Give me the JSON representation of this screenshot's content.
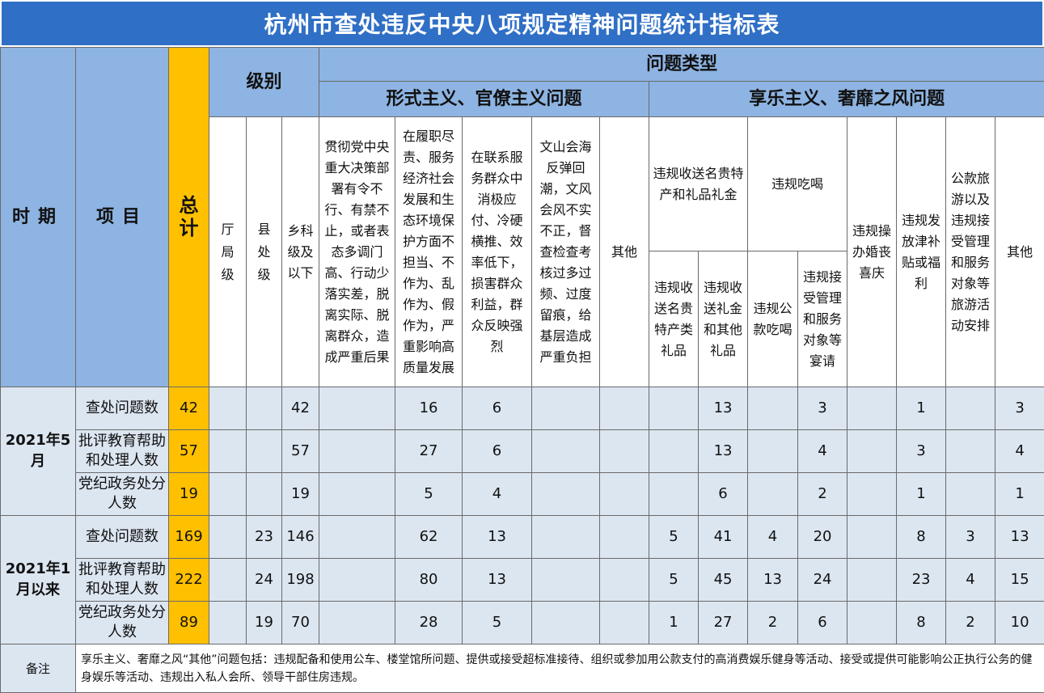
{
  "title": "杭州市查处违反中央八项规定精神问题统计指标表",
  "headers": {
    "time": "时期",
    "item": "项目",
    "total": "总计",
    "level": "级别",
    "problem_type": "问题类型",
    "formalism": "形式主义、官僚主义问题",
    "hedonism": "享乐主义、奢靡之风问题",
    "level_cols": [
      "厅局级",
      "县处级",
      "乡科级及以下"
    ],
    "formalism_cols": [
      "贯彻党中央重大决策部署有令不行、有禁不止，或者表态多调门高、行动少落实差，脱离实际、脱离群众，造成严重后果",
      "在履职尽责、服务经济社会发展和生态环境保护方面不担当、不作为、乱作为、假作为，严重影响高质量发展",
      "在联系服务群众中消极应付、冷硬横推、效率低下，损害群众利益，群众反映强烈",
      "文山会海反弹回潮，文风会风不实不正，督查检查考核过多过频、过度留痕，给基层造成严重负担",
      "其他"
    ],
    "gift_group": "违规收送名贵特产和礼品礼金",
    "gift_cols": [
      "违规收送名贵特产类礼品",
      "违规收送礼金和其他礼品"
    ],
    "eat_group": "违规吃喝",
    "eat_cols": [
      "违规公款吃喝",
      "违规接受管理和服务对象等宴请"
    ],
    "wedding": "违规操办婚丧喜庆",
    "subsidy": "违规发放津补贴或福利",
    "travel": "公款旅游以及违规接受管理和服务对象等旅游活动安排",
    "hedonism_other": "其他"
  },
  "groups": [
    {
      "period": "2021年5月",
      "rows": [
        {
          "item": "查处问题数",
          "total": "42",
          "values": [
            "",
            "",
            "42",
            "",
            "16",
            "6",
            "",
            "",
            "",
            "13",
            "",
            "3",
            "",
            "1",
            "",
            "3"
          ]
        },
        {
          "item": "批评教育帮助和处理人数",
          "total": "57",
          "values": [
            "",
            "",
            "57",
            "",
            "27",
            "6",
            "",
            "",
            "",
            "13",
            "",
            "4",
            "",
            "3",
            "",
            "4"
          ]
        },
        {
          "item": "党纪政务处分人数",
          "total": "19",
          "values": [
            "",
            "",
            "19",
            "",
            "5",
            "4",
            "",
            "",
            "",
            "6",
            "",
            "2",
            "",
            "1",
            "",
            "1"
          ]
        }
      ]
    },
    {
      "period": "2021年1月以来",
      "rows": [
        {
          "item": "查处问题数",
          "total": "169",
          "values": [
            "",
            "23",
            "146",
            "",
            "62",
            "13",
            "",
            "",
            "5",
            "41",
            "4",
            "20",
            "",
            "8",
            "3",
            "13"
          ]
        },
        {
          "item": "批评教育帮助和处理人数",
          "total": "222",
          "values": [
            "",
            "24",
            "198",
            "",
            "80",
            "13",
            "",
            "",
            "5",
            "45",
            "13",
            "24",
            "",
            "23",
            "4",
            "15"
          ]
        },
        {
          "item": "党纪政务处分人数",
          "total": "89",
          "values": [
            "",
            "19",
            "70",
            "",
            "28",
            "5",
            "",
            "",
            "1",
            "27",
            "2",
            "6",
            "",
            "8",
            "2",
            "10"
          ]
        }
      ]
    }
  ],
  "note_label": "备注",
  "note_text": "享乐主义、奢靡之风“其他”问题包括：违规配备和使用公车、楼堂馆所问题、提供或接受超标准接待、组织或参加用公款支付的高消费娱乐健身等活动、接受或提供可能影响公正执行公务的健身娱乐等活动、违规出入私人会所、领导干部住房违规。"
}
